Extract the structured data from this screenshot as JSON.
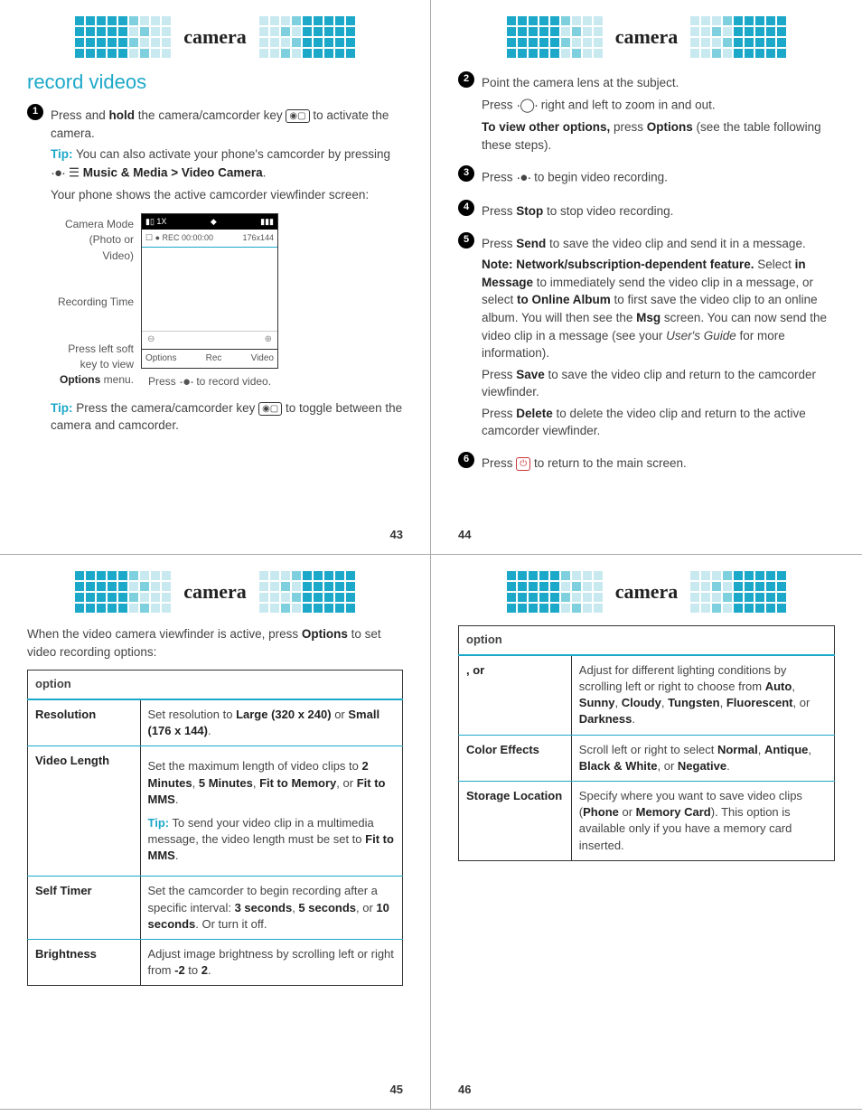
{
  "deco": {
    "solid": "#1ca8c9",
    "fade1": "#7fd0de",
    "fade2": "#c8e9ef",
    "bg": "#ffffff"
  },
  "hdr": "camera",
  "p43": {
    "section": "record videos",
    "s1": {
      "a": "Press and ",
      "b": "hold",
      "c": " the camera/camcorder key ",
      "d": " to activate the camera."
    },
    "tip1a": "Tip:",
    "tip1b": " You can also activate your phone's camcorder by pressing ",
    "nav": "Music & Media > Video Camera",
    "vfintro": "Your phone shows the active camcorder viewfinder screen:",
    "lbl_mode": "Camera Mode (Photo or Video)",
    "lbl_rec": "Recording Time",
    "lbl_soft": "Press left soft key to view ",
    "lbl_soft_b": "Options",
    "lbl_soft_c": " menu.",
    "vf": {
      "sig": "1X",
      "rec": "REC 00:00:00",
      "res": "176x144",
      "q1": "⊖",
      "q2": "⊕",
      "soft1": "Options",
      "soft2": "Rec",
      "soft3": "Video"
    },
    "vfcap1": "Press ",
    "vfcap2": " to record video.",
    "tip2a": "Tip:",
    "tip2b": " Press the camera/camcorder key ",
    "tip2c": " to toggle between the camera and camcorder.",
    "num": "43"
  },
  "p44": {
    "s2a": "Point the camera lens at the subject.",
    "s2b": "Press ",
    "s2c": " right and left to zoom in and out.",
    "s2d": "To view other options,",
    "s2e": " press ",
    "s2f": "Options",
    "s2g": " (see the table following these steps).",
    "s3a": "Press ",
    "s3b": " to begin video recording.",
    "s4a": "Press ",
    "s4b": "Stop",
    "s4c": " to stop video recording.",
    "s5a": "Press ",
    "s5b": "Send",
    "s5c": " to save the video clip and send it in a message.",
    "note": "Note: Network/subscription-dependent feature.",
    "s5d": "Select ",
    "s5e": "in Message",
    "s5f": " to immediately send the video clip in a message, or select ",
    "s5g": "to Online Album",
    "s5h": " to first save the video clip to an online album. You will then see the ",
    "s5i": "Msg",
    "s5j": " screen. You can now send the video clip in a message (see your ",
    "s5k": "User's Guide",
    "s5l": " for more information).",
    "s5m": "Press ",
    "s5n": "Save",
    "s5o": " to save the video clip and return to the camcorder viewfinder.",
    "s5p": "Press ",
    "s5q": "Delete",
    "s5r": " to delete the video clip and return to the active camcorder viewfinder.",
    "s6a": "Press ",
    "s6b": " to return to the main screen.",
    "num": "44"
  },
  "p45": {
    "intro1": "When the video camera viewfinder is active, press ",
    "intro2": "Options",
    "intro3": " to set video recording options:",
    "th": "option",
    "r1": {
      "k": "Resolution",
      "a": "Set resolution to ",
      "b": "Large (320 x 240)",
      "c": " or ",
      "d": "Small (176 x 144)",
      "e": "."
    },
    "r2": {
      "k": "Video Length",
      "a": "Set the maximum length of video clips to ",
      "b": "2 Minutes",
      "c": ", ",
      "d": "5 Minutes",
      "e": ", ",
      "f": "Fit to Memory",
      "g": ", or ",
      "h": "Fit to MMS",
      "i": ".",
      "t1": "Tip:",
      "t2": " To send your video clip in a multimedia message, the video length must be set to ",
      "t3": "Fit to MMS",
      "t4": "."
    },
    "r3": {
      "k": "Self Timer",
      "a": "Set the camcorder to begin recording after a specific interval: ",
      "b": "3 seconds",
      "c": ", ",
      "d": "5 seconds",
      "e": ", or ",
      "f": "10 seconds",
      "g": ". Or turn it off."
    },
    "r4": {
      "k": "Brightness",
      "a": "Adjust image brightness by scrolling left or right from ",
      "b": "-2",
      "c": " to ",
      "d": "2",
      "e": "."
    },
    "num": "45"
  },
  "p46": {
    "th": "option",
    "r1": {
      "k": ", or ",
      "a": "Adjust for different lighting conditions by scrolling left or right to choose from ",
      "b": "Auto",
      "c": ", ",
      "d": "Sunny",
      "e": ", ",
      "f": "Cloudy",
      "g": ", ",
      "h": "Tungsten",
      "i": ", ",
      "j": "Fluorescent",
      "l": "Darkness",
      "m": "."
    },
    "r2": {
      "k": "Color Effects",
      "a": "Scroll left or right to select ",
      "b": "Normal",
      "c": ", ",
      "d": "Antique",
      "e": ", ",
      "f": "Black & White",
      "g": ", or ",
      "h": "Negative",
      "i": "."
    },
    "r3": {
      "k": "Storage Location",
      "a": "Specify where you want to save video clips (",
      "b": "Phone",
      "c": " or ",
      "d": "Memory Card",
      "e": "). This option is available only if you have a memory card inserted."
    },
    "num": "46"
  }
}
